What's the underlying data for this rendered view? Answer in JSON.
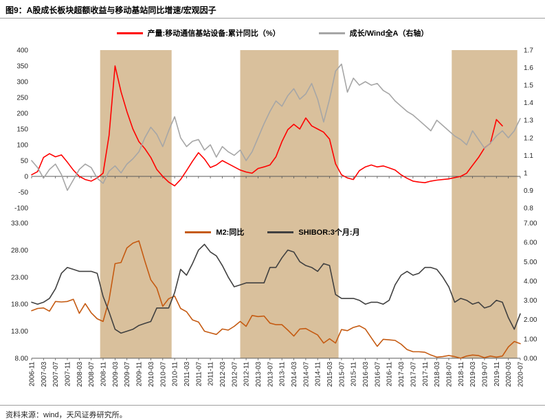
{
  "header": {
    "title": "图9：A股成长板块超额收益与移动基站同比增速/宏观因子"
  },
  "footer": {
    "source": "资料来源：wind，天风证券研究所。"
  },
  "chart_data": {
    "type": "line",
    "x_axis": {
      "start": "2006-11",
      "end": "2020-07",
      "point_step_months": 2,
      "tick_labels": [
        "2006-11",
        "2007-03",
        "2007-07",
        "2007-11",
        "2008-03",
        "2008-07",
        "2008-11",
        "2009-03",
        "2009-07",
        "2009-11",
        "2010-03",
        "2010-07",
        "2010-11",
        "2011-03",
        "2011-07",
        "2011-11",
        "2012-03",
        "2012-07",
        "2012-11",
        "2013-03",
        "2013-07",
        "2013-11",
        "2014-03",
        "2014-07",
        "2014-11",
        "2015-03",
        "2015-07",
        "2015-11",
        "2016-03",
        "2016-07",
        "2016-11",
        "2017-03",
        "2017-07",
        "2017-11",
        "2018-03",
        "2018-07",
        "2018-11",
        "2019-03",
        "2019-07",
        "2019-11",
        "2020-03",
        "2020-07"
      ]
    },
    "highlight_bands": {
      "color": "#d9c09c",
      "ranges": [
        {
          "from": "2008-10",
          "to": "2010-10"
        },
        {
          "from": "2012-09",
          "to": "2015-06"
        },
        {
          "from": "2018-08",
          "to": "2020-06"
        }
      ]
    },
    "panels": [
      {
        "name": "top",
        "left_axis": {
          "min": -100,
          "max": 400,
          "labels": [
            "400",
            "350",
            "300",
            "250",
            "200",
            "150",
            "100",
            "50",
            "0",
            "-50",
            "-100"
          ]
        },
        "right_axis": {
          "min": 0.8,
          "max": 1.7,
          "labels": [
            "1.7",
            "1.6",
            "1.5",
            "1.4",
            "1.3",
            "1.2",
            "1.1",
            "1",
            "0.9",
            "0.8"
          ]
        },
        "series": [
          {
            "name": "产量:移动通信基站设备:累计同比（%）",
            "axis": "left",
            "color": "#ff0000",
            "values": [
              5,
              15,
              60,
              72,
              62,
              68,
              45,
              20,
              0,
              -10,
              -15,
              -5,
              10,
              130,
              350,
              268,
              205,
              150,
              110,
              88,
              60,
              22,
              0,
              -18,
              -30,
              -10,
              18,
              48,
              75,
              55,
              28,
              36,
              50,
              40,
              30,
              20,
              14,
              10,
              25,
              30,
              36,
              62,
              110,
              148,
              165,
              150,
              185,
              160,
              150,
              140,
              118,
              40,
              5,
              -5,
              -10,
              18,
              30,
              36,
              30,
              33,
              27,
              20,
              5,
              -6,
              -15,
              -18,
              -20,
              -15,
              -12,
              -10,
              -8,
              -4,
              0,
              10,
              35,
              60,
              90,
              105,
              180,
              160,
              null,
              null,
              null
            ]
          },
          {
            "name": "成长/Wind全A（右轴）",
            "axis": "right",
            "color": "#a6a6a6",
            "values": [
              1.07,
              1.03,
              0.97,
              1.02,
              1.05,
              0.99,
              0.9,
              0.96,
              1.02,
              1.05,
              1.03,
              0.97,
              0.94,
              1.01,
              1.04,
              1.0,
              1.05,
              1.08,
              1.12,
              1.2,
              1.26,
              1.22,
              1.15,
              1.24,
              1.32,
              1.2,
              1.15,
              1.18,
              1.19,
              1.13,
              1.16,
              1.09,
              1.15,
              1.12,
              1.1,
              1.13,
              1.07,
              1.12,
              1.2,
              1.28,
              1.35,
              1.41,
              1.38,
              1.44,
              1.48,
              1.42,
              1.45,
              1.51,
              1.42,
              1.29,
              1.42,
              1.58,
              1.62,
              1.46,
              1.54,
              1.5,
              1.52,
              1.5,
              1.51,
              1.47,
              1.45,
              1.41,
              1.38,
              1.35,
              1.33,
              1.3,
              1.27,
              1.24,
              1.3,
              1.27,
              1.24,
              1.21,
              1.19,
              1.16,
              1.24,
              1.19,
              1.14,
              1.17,
              1.21,
              1.24,
              1.2,
              1.24,
              1.31
            ]
          }
        ]
      },
      {
        "name": "bottom",
        "left_axis": {
          "min": 8,
          "max": 33,
          "labels": [
            "33.00",
            "28.00",
            "23.00",
            "18.00",
            "13.00",
            "8.00"
          ]
        },
        "right_axis": {
          "min": 0,
          "max": 7,
          "labels": [
            "7.00",
            "6.00",
            "5.00",
            "4.00",
            "3.00",
            "2.00",
            "1.00",
            "0.00"
          ]
        },
        "series": [
          {
            "name": "M2:同比",
            "axis": "left",
            "color": "#c55a11",
            "values": [
              16.8,
              17.2,
              17.3,
              16.7,
              18.5,
              18.4,
              18.5,
              18.9,
              16.3,
              18.1,
              16.4,
              15.3,
              14.8,
              18.8,
              25.5,
              25.7,
              28.4,
              29.3,
              29.7,
              26.0,
              22.5,
              21.0,
              17.6,
              19.0,
              19.5,
              17.2,
              16.6,
              15.1,
              14.7,
              13.0,
              12.7,
              12.4,
              13.4,
              13.2,
              13.9,
              14.8,
              13.9,
              15.9,
              15.7,
              15.8,
              14.5,
              14.2,
              14.2,
              13.2,
              12.1,
              13.4,
              13.5,
              12.9,
              12.3,
              10.8,
              11.6,
              10.8,
              13.3,
              13.1,
              13.7,
              14.0,
              13.4,
              11.8,
              10.2,
              11.5,
              11.4,
              11.3,
              10.6,
              9.6,
              9.2,
              9.2,
              9.1,
              8.6,
              8.2,
              8.3,
              8.5,
              8.3,
              8.0,
              8.4,
              8.6,
              8.5,
              8.1,
              8.4,
              8.2,
              8.4,
              10.1,
              11.1,
              10.7
            ]
          },
          {
            "name": "SHIBOR:3个月:月",
            "axis": "right",
            "color": "#404040",
            "values": [
              2.9,
              2.8,
              2.9,
              3.1,
              3.6,
              4.4,
              4.7,
              4.6,
              4.5,
              4.5,
              4.5,
              4.4,
              3.2,
              2.4,
              1.5,
              1.3,
              1.4,
              1.5,
              1.7,
              1.8,
              1.9,
              2.6,
              2.6,
              2.6,
              3.4,
              4.6,
              4.3,
              4.9,
              5.6,
              5.9,
              5.5,
              5.3,
              4.8,
              4.2,
              3.7,
              3.8,
              3.9,
              3.9,
              3.9,
              3.9,
              4.7,
              4.7,
              5.2,
              5.6,
              5.5,
              5.0,
              4.8,
              4.7,
              4.5,
              4.9,
              4.8,
              3.3,
              3.1,
              3.1,
              3.1,
              3.0,
              2.8,
              2.9,
              2.9,
              2.8,
              3.0,
              3.8,
              4.3,
              4.5,
              4.3,
              4.4,
              4.7,
              4.7,
              4.6,
              4.2,
              3.7,
              2.9,
              3.1,
              3.0,
              2.8,
              2.9,
              2.6,
              2.7,
              3.0,
              2.9,
              2.1,
              1.5,
              2.3
            ]
          }
        ]
      }
    ]
  }
}
